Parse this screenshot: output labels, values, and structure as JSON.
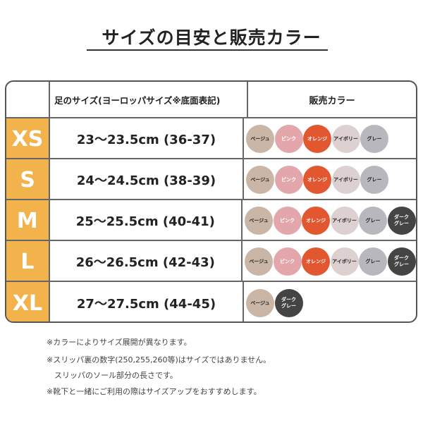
{
  "title": "サイズの目安と販売カラー",
  "header": {
    "col2": "足のサイズ(ヨーロッパサイズ※底面表記)",
    "col3": "販売カラー"
  },
  "colors": {
    "beige": {
      "label": "ベージュ",
      "hex": "#c9b6a6",
      "text": "#222"
    },
    "pink": {
      "label": "ピンク",
      "hex": "#e3a7ab",
      "text": "#fff"
    },
    "orange": {
      "label": "オレンジ",
      "hex": "#e2572f",
      "text": "#fff"
    },
    "ivory": {
      "label": "アイボリー",
      "hex": "#ddd0d0",
      "text": "#222"
    },
    "gray": {
      "label": "グレー",
      "hex": "#b7b7bd",
      "text": "#222"
    },
    "darkgray": {
      "label": "ダーク\nグレー",
      "hex": "#444444",
      "text": "#fff"
    }
  },
  "rows": [
    {
      "size": "XS",
      "range": "23〜23.5cm (36-37)",
      "colors": [
        "beige",
        "pink",
        "orange",
        "ivory",
        "gray"
      ]
    },
    {
      "size": "S",
      "range": "24〜24.5cm (38-39)",
      "colors": [
        "beige",
        "pink",
        "orange",
        "ivory",
        "gray"
      ]
    },
    {
      "size": "M",
      "range": "25〜25.5cm (40-41)",
      "colors": [
        "beige",
        "pink",
        "orange",
        "ivory",
        "gray",
        "darkgray"
      ]
    },
    {
      "size": "L",
      "range": "26〜26.5cm (42-43)",
      "colors": [
        "beige",
        "pink",
        "orange",
        "ivory",
        "gray",
        "darkgray"
      ]
    },
    {
      "size": "XL",
      "range": "27〜27.5cm (44-45)",
      "colors": [
        "beige",
        "darkgray"
      ]
    }
  ],
  "notes": [
    "※カラーによりサイズ展開が異なります。",
    "※スリッパ裏の数字(250,255,260等)はサイズではありません。",
    "　スリッパのソール部分の長さです。",
    "※靴下と一緒にご利用の際はサイズアップをおすすめします。"
  ]
}
